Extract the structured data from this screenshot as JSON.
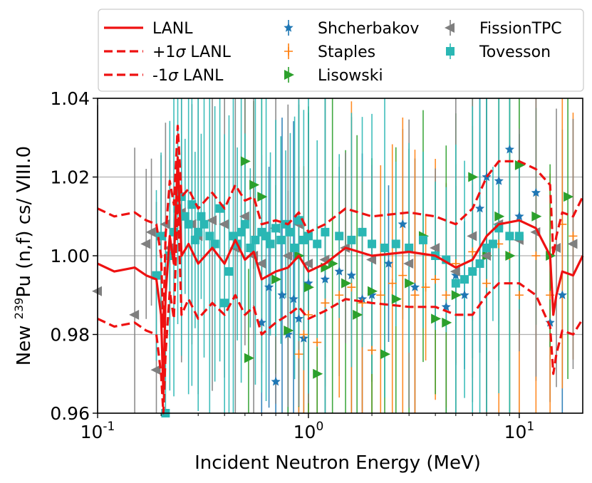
{
  "chart_data": {
    "type": "scatter",
    "title": "",
    "xlabel": "Incident Neutron Energy (MeV)",
    "ylabel_prefix": "New ",
    "ylabel_sup": "239",
    "ylabel_suffix": "Pu (n,f) cs/ VIII.0",
    "xscale": "log",
    "xlim": [
      0.1,
      20
    ],
    "ylim": [
      0.96,
      1.04
    ],
    "yticks": [
      0.96,
      0.98,
      1.0,
      1.02,
      1.04
    ],
    "ytick_labels": [
      "0.96",
      "0.98",
      "1.00",
      "1.02",
      "1.04"
    ],
    "xticks": [
      {
        "value": 0.1,
        "base": "10",
        "exp": "-1"
      },
      {
        "value": 1,
        "base": "10",
        "exp": "0"
      },
      {
        "value": 10,
        "base": "10",
        "exp": "1"
      }
    ],
    "grid": true,
    "legend": {
      "position": "top",
      "columns": 3,
      "entries": [
        {
          "label_pre": "LANL",
          "label_sigma": "",
          "label_post": "",
          "style": "line"
        },
        {
          "label_pre": "+1",
          "label_sigma": "σ",
          "label_post": " LANL",
          "style": "dashed"
        },
        {
          "label_pre": "-1",
          "label_sigma": "σ",
          "label_post": " LANL",
          "style": "dashed"
        },
        {
          "label_pre": "Shcherbakov",
          "label_sigma": "",
          "label_post": "",
          "style": "star"
        },
        {
          "label_pre": "Staples",
          "label_sigma": "",
          "label_post": "",
          "style": "plus"
        },
        {
          "label_pre": "Lisowski",
          "label_sigma": "",
          "label_post": "",
          "style": "tri-right"
        },
        {
          "label_pre": "FissionTPC",
          "label_sigma": "",
          "label_post": "",
          "style": "tri-left"
        },
        {
          "label_pre": "Tovesson",
          "label_sigma": "",
          "label_post": "",
          "style": "square"
        }
      ]
    },
    "series": [
      {
        "name": "LANL",
        "kind": "line",
        "color": "#ee1111",
        "dash": false,
        "x": [
          0.1,
          0.12,
          0.15,
          0.17,
          0.19,
          0.2,
          0.205,
          0.21,
          0.22,
          0.23,
          0.24,
          0.25,
          0.27,
          0.3,
          0.35,
          0.4,
          0.45,
          0.5,
          0.55,
          0.6,
          0.7,
          0.8,
          0.9,
          1.0,
          1.2,
          1.5,
          2.0,
          3.0,
          4.0,
          5.0,
          6.0,
          7.0,
          8.0,
          10.0,
          12.0,
          14.0,
          14.5,
          15.0,
          16.0,
          18.0,
          20.0
        ],
        "y": [
          0.998,
          0.996,
          0.997,
          0.995,
          0.994,
          0.985,
          0.965,
          0.99,
          1.005,
          0.998,
          1.025,
          1.0,
          1.003,
          0.998,
          1.002,
          0.998,
          1.004,
          0.999,
          1.001,
          0.994,
          0.996,
          0.997,
          1.0,
          0.996,
          0.998,
          1.002,
          1.0,
          1.001,
          1.0,
          0.997,
          0.999,
          1.005,
          1.008,
          1.009,
          1.007,
          1.0,
          0.985,
          0.99,
          0.996,
          0.995,
          1.0
        ]
      },
      {
        "name": "+1σ LANL",
        "kind": "line",
        "color": "#ee1111",
        "dash": true,
        "x": [
          0.1,
          0.12,
          0.15,
          0.17,
          0.19,
          0.2,
          0.205,
          0.21,
          0.22,
          0.23,
          0.24,
          0.25,
          0.27,
          0.3,
          0.35,
          0.4,
          0.45,
          0.5,
          0.55,
          0.6,
          0.7,
          0.8,
          0.9,
          1.0,
          1.2,
          1.5,
          2.0,
          3.0,
          4.0,
          5.0,
          6.0,
          7.0,
          8.0,
          10.0,
          12.0,
          14.0,
          14.5,
          15.0,
          16.0,
          18.0,
          20.0
        ],
        "y": [
          1.012,
          1.01,
          1.011,
          1.009,
          1.008,
          1.0,
          0.982,
          1.005,
          1.019,
          1.013,
          1.033,
          1.015,
          1.017,
          1.012,
          1.016,
          1.012,
          1.018,
          1.014,
          1.015,
          1.008,
          1.009,
          1.008,
          1.011,
          1.006,
          1.008,
          1.012,
          1.01,
          1.011,
          1.01,
          1.008,
          1.012,
          1.02,
          1.024,
          1.024,
          1.022,
          1.018,
          1.0,
          1.005,
          1.011,
          1.01,
          1.015
        ]
      },
      {
        "name": "-1σ LANL",
        "kind": "line",
        "color": "#ee1111",
        "dash": true,
        "x": [
          0.1,
          0.12,
          0.15,
          0.17,
          0.19,
          0.2,
          0.205,
          0.21,
          0.22,
          0.23,
          0.24,
          0.25,
          0.27,
          0.3,
          0.35,
          0.4,
          0.45,
          0.5,
          0.55,
          0.6,
          0.7,
          0.8,
          0.9,
          1.0,
          1.2,
          1.5,
          2.0,
          3.0,
          4.0,
          5.0,
          6.0,
          7.0,
          8.0,
          10.0,
          12.0,
          14.0,
          14.5,
          15.0,
          16.0,
          18.0,
          20.0
        ],
        "y": [
          0.984,
          0.982,
          0.983,
          0.981,
          0.98,
          0.97,
          0.96,
          0.975,
          0.991,
          0.984,
          1.015,
          0.985,
          0.989,
          0.984,
          0.988,
          0.985,
          0.99,
          0.985,
          0.987,
          0.98,
          0.983,
          0.985,
          0.987,
          0.984,
          0.986,
          0.989,
          0.988,
          0.987,
          0.987,
          0.985,
          0.985,
          0.99,
          0.993,
          0.993,
          0.99,
          0.982,
          0.97,
          0.975,
          0.981,
          0.98,
          0.984
        ]
      },
      {
        "name": "Shcherbakov",
        "kind": "star",
        "color": "#1f77b4",
        "x": [
          0.6,
          0.65,
          0.7,
          0.75,
          0.8,
          0.85,
          0.9,
          0.95,
          1.0,
          1.2,
          1.4,
          1.6,
          1.8,
          2.0,
          2.4,
          2.8,
          3.2,
          4.5,
          5.0,
          5.5,
          6.0,
          6.5,
          7.0,
          8.0,
          9.0,
          10.0,
          12.0,
          14.0,
          16.0
        ],
        "y": [
          0.983,
          0.992,
          0.968,
          0.99,
          0.98,
          0.989,
          0.984,
          0.979,
          0.993,
          0.994,
          0.996,
          0.995,
          0.989,
          0.99,
          0.998,
          1.008,
          0.992,
          0.987,
          0.995,
          0.99,
          0.996,
          1.012,
          1.02,
          1.019,
          1.027,
          1.01,
          1.016,
          0.983,
          0.99
        ]
      },
      {
        "name": "Staples",
        "kind": "plus",
        "color": "#ff7f0e",
        "x": [
          0.9,
          0.95,
          1.0,
          1.1,
          1.2,
          1.4,
          1.6,
          1.8,
          2.0,
          2.2,
          2.5,
          2.8,
          3.2,
          3.6,
          4.0,
          4.5,
          5.0,
          6.0,
          7.0,
          8.0,
          9.0,
          10.0,
          12.0,
          14.0,
          16.0,
          18.0
        ],
        "y": [
          0.975,
          0.98,
          0.985,
          0.978,
          0.988,
          0.99,
          0.992,
          0.988,
          0.976,
          0.99,
          0.993,
          0.995,
          0.99,
          0.992,
          0.994,
          0.99,
          0.998,
          1.001,
          0.993,
          1.003,
          1.0,
          0.99,
          1.0,
          0.99,
          1.008,
          1.005
        ]
      },
      {
        "name": "Lisowski",
        "kind": "tri-right",
        "color": "#2ca02c",
        "x": [
          0.5,
          0.52,
          0.55,
          0.6,
          0.7,
          0.8,
          0.9,
          1.0,
          1.1,
          1.2,
          1.3,
          1.5,
          1.7,
          2.0,
          2.3,
          2.6,
          3.0,
          3.5,
          4.0,
          4.5,
          5.0,
          6.0,
          7.0,
          8.0,
          9.0,
          10.0,
          12.0,
          14.0,
          17.0
        ],
        "y": [
          1.024,
          0.974,
          1.018,
          1.015,
          0.994,
          0.981,
          1.0,
          0.992,
          0.97,
          0.997,
          0.998,
          0.993,
          0.985,
          0.991,
          0.975,
          0.989,
          0.993,
          1.005,
          0.984,
          0.983,
          0.99,
          1.02,
          1.0,
          1.01,
          1.0,
          1.023,
          1.01,
          1.0,
          1.015
        ]
      },
      {
        "name": "FissionTPC",
        "kind": "tri-left",
        "color": "#7f7f7f",
        "x": [
          0.1,
          0.15,
          0.17,
          0.18,
          0.19,
          0.2,
          0.21,
          0.22,
          0.25,
          0.28,
          0.3,
          0.35,
          0.4,
          0.45,
          0.5,
          0.55,
          0.6,
          0.7,
          0.8,
          0.9,
          1.0,
          1.2,
          1.5,
          2.0,
          3.0,
          4.0,
          5.0,
          6.0,
          7.0,
          8.0,
          10.0,
          12.0,
          15.0,
          18.0
        ],
        "y": [
          0.991,
          0.985,
          1.003,
          1.006,
          0.971,
          1.005,
          1.008,
          1.002,
          1.011,
          1.008,
          1.005,
          1.009,
          1.008,
          1.002,
          1.01,
          1.0,
          0.998,
          1.007,
          1.0,
          1.008,
          0.998,
          0.999,
          1.002,
          0.999,
          0.998,
          1.002,
          0.996,
          1.005,
          1.0,
          1.008,
          1.004,
          1.006,
          1.002,
          1.003
        ]
      },
      {
        "name": "Tovesson",
        "kind": "square",
        "color": "#2ab7b4",
        "x": [
          0.19,
          0.2,
          0.21,
          0.22,
          0.23,
          0.24,
          0.25,
          0.26,
          0.27,
          0.28,
          0.29,
          0.3,
          0.31,
          0.32,
          0.34,
          0.36,
          0.38,
          0.4,
          0.42,
          0.44,
          0.46,
          0.48,
          0.5,
          0.53,
          0.56,
          0.6,
          0.63,
          0.66,
          0.7,
          0.74,
          0.78,
          0.82,
          0.86,
          0.9,
          0.95,
          1.0,
          1.1,
          1.2,
          1.4,
          1.6,
          1.8,
          2.0,
          2.3,
          2.6,
          3.0,
          3.5,
          4.0,
          4.5,
          5.0,
          5.5,
          6.0,
          6.5,
          7.0,
          7.5,
          8.0,
          9.0,
          10.0
        ],
        "y": [
          0.995,
          1.005,
          0.96,
          1.0,
          1.006,
          1.012,
          1.015,
          1.01,
          1.008,
          1.013,
          1.004,
          1.006,
          1.01,
          1.008,
          1.005,
          1.003,
          1.012,
          0.988,
          0.996,
          1.005,
          1.003,
          1.006,
          1.008,
          1.002,
          1.004,
          1.006,
          1.005,
          1.003,
          1.007,
          1.004,
          1.008,
          1.006,
          1.002,
          1.009,
          1.004,
          1.005,
          1.003,
          1.006,
          1.005,
          1.004,
          1.006,
          1.003,
          1.002,
          1.003,
          1.002,
          1.004,
          1.0,
          0.999,
          0.993,
          0.994,
          0.996,
          0.998,
          1.002,
          1.003,
          1.007,
          1.005,
          1.005
        ]
      }
    ]
  }
}
